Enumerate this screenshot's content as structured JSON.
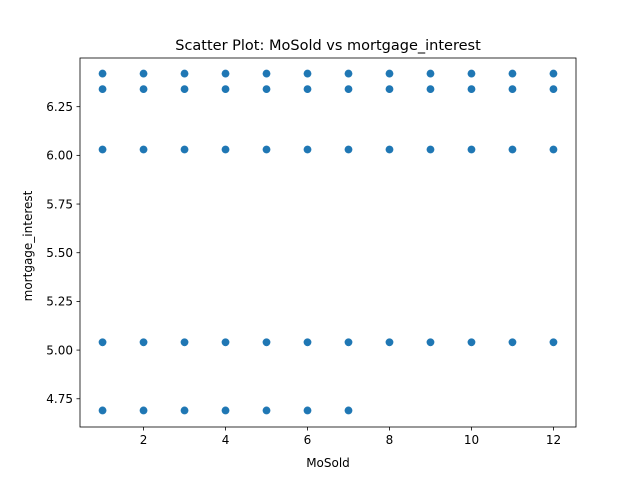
{
  "chart_data": {
    "type": "scatter",
    "title": "Scatter Plot: MoSold vs mortgage_interest",
    "xlabel": "MoSold",
    "ylabel": "mortgage_interest",
    "xlim": [
      0.45,
      12.55
    ],
    "ylim": [
      4.605,
      6.5
    ],
    "x_ticks": [
      2,
      4,
      6,
      8,
      10,
      12
    ],
    "x_tick_labels": [
      "2",
      "4",
      "6",
      "8",
      "10",
      "12"
    ],
    "y_ticks": [
      4.75,
      5.0,
      5.25,
      5.5,
      5.75,
      6.0,
      6.25
    ],
    "y_tick_labels": [
      "4.75",
      "5.00",
      "5.25",
      "5.50",
      "5.75",
      "6.00",
      "6.25"
    ],
    "grid": false,
    "point_color": "#1f77b4",
    "series": [
      {
        "points": [
          {
            "x": 1,
            "y": 6.42
          },
          {
            "x": 2,
            "y": 6.42
          },
          {
            "x": 3,
            "y": 6.42
          },
          {
            "x": 4,
            "y": 6.42
          },
          {
            "x": 5,
            "y": 6.42
          },
          {
            "x": 6,
            "y": 6.42
          },
          {
            "x": 7,
            "y": 6.42
          },
          {
            "x": 8,
            "y": 6.42
          },
          {
            "x": 9,
            "y": 6.42
          },
          {
            "x": 10,
            "y": 6.42
          },
          {
            "x": 11,
            "y": 6.42
          },
          {
            "x": 12,
            "y": 6.42
          },
          {
            "x": 1,
            "y": 6.34
          },
          {
            "x": 2,
            "y": 6.34
          },
          {
            "x": 3,
            "y": 6.34
          },
          {
            "x": 4,
            "y": 6.34
          },
          {
            "x": 5,
            "y": 6.34
          },
          {
            "x": 6,
            "y": 6.34
          },
          {
            "x": 7,
            "y": 6.34
          },
          {
            "x": 8,
            "y": 6.34
          },
          {
            "x": 9,
            "y": 6.34
          },
          {
            "x": 10,
            "y": 6.34
          },
          {
            "x": 11,
            "y": 6.34
          },
          {
            "x": 12,
            "y": 6.34
          },
          {
            "x": 1,
            "y": 6.03
          },
          {
            "x": 2,
            "y": 6.03
          },
          {
            "x": 3,
            "y": 6.03
          },
          {
            "x": 4,
            "y": 6.03
          },
          {
            "x": 5,
            "y": 6.03
          },
          {
            "x": 6,
            "y": 6.03
          },
          {
            "x": 7,
            "y": 6.03
          },
          {
            "x": 8,
            "y": 6.03
          },
          {
            "x": 9,
            "y": 6.03
          },
          {
            "x": 10,
            "y": 6.03
          },
          {
            "x": 11,
            "y": 6.03
          },
          {
            "x": 12,
            "y": 6.03
          },
          {
            "x": 1,
            "y": 5.04
          },
          {
            "x": 2,
            "y": 5.04
          },
          {
            "x": 3,
            "y": 5.04
          },
          {
            "x": 4,
            "y": 5.04
          },
          {
            "x": 5,
            "y": 5.04
          },
          {
            "x": 6,
            "y": 5.04
          },
          {
            "x": 7,
            "y": 5.04
          },
          {
            "x": 8,
            "y": 5.04
          },
          {
            "x": 9,
            "y": 5.04
          },
          {
            "x": 10,
            "y": 5.04
          },
          {
            "x": 11,
            "y": 5.04
          },
          {
            "x": 12,
            "y": 5.04
          },
          {
            "x": 1,
            "y": 4.69
          },
          {
            "x": 2,
            "y": 4.69
          },
          {
            "x": 3,
            "y": 4.69
          },
          {
            "x": 4,
            "y": 4.69
          },
          {
            "x": 5,
            "y": 4.69
          },
          {
            "x": 6,
            "y": 4.69
          },
          {
            "x": 7,
            "y": 4.69
          }
        ]
      }
    ]
  }
}
